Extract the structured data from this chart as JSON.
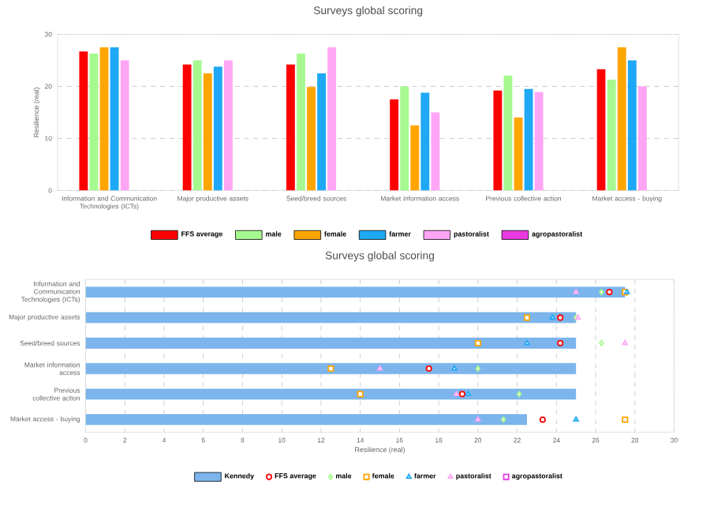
{
  "chart_data": [
    {
      "type": "bar",
      "title": "Surveys global scoring",
      "ylabel": "Resilience (real)",
      "categories": [
        "Information and Communication Technologies (ICTs)",
        "Major productive assets",
        "Seed/breed sources",
        "Market information access",
        "Previous collective action",
        "Market access - buying"
      ],
      "series": [
        {
          "name": "FFS average",
          "color": "#ff0000",
          "values": [
            26.7,
            24.2,
            24.2,
            17.5,
            19.2,
            23.3
          ]
        },
        {
          "name": "male",
          "color": "#a6f98f",
          "values": [
            26.3,
            25.0,
            26.3,
            20.0,
            22.1,
            21.3
          ]
        },
        {
          "name": "female",
          "color": "#ffa500",
          "values": [
            27.5,
            22.5,
            19.9,
            12.5,
            14.0,
            27.5
          ]
        },
        {
          "name": "farmer",
          "color": "#1fa8f5",
          "values": [
            27.5,
            23.8,
            22.5,
            18.8,
            19.5,
            25.0
          ]
        },
        {
          "name": "pastoralist",
          "color": "#ffa5f5",
          "values": [
            25.0,
            25.0,
            27.5,
            15.0,
            18.9,
            20.0
          ]
        },
        {
          "name": "agropastoralist",
          "color": "#e83ae0",
          "values": [
            null,
            null,
            null,
            null,
            null,
            null
          ]
        }
      ],
      "ylim": [
        0,
        30
      ],
      "yticks": [
        0,
        10,
        20,
        30
      ],
      "grid": "y",
      "legend": "bottom"
    },
    {
      "type": "bar",
      "orientation": "horizontal",
      "title": "Surveys global scoring",
      "xlabel": "Resilience (real)",
      "categories": [
        "Information and Communication Technologies (ICTs)",
        "Major productive assets",
        "Seed/breed sources",
        "Market information access",
        "Previous collective action",
        "Market access - buying"
      ],
      "series": [
        {
          "name": "Kennedy",
          "type": "bar",
          "color": "#7cb5ec",
          "values": [
            27.5,
            25.0,
            25.0,
            25.0,
            25.0,
            22.5
          ]
        },
        {
          "name": "FFS average",
          "type": "scatter",
          "marker": "circle",
          "color": "#ff0000",
          "values": [
            26.7,
            24.2,
            24.2,
            17.5,
            19.2,
            23.3
          ]
        },
        {
          "name": "male",
          "type": "scatter",
          "marker": "diamond",
          "color": "#a6f98f",
          "values": [
            26.3,
            25.0,
            26.3,
            20.0,
            22.1,
            21.3
          ]
        },
        {
          "name": "female",
          "type": "scatter",
          "marker": "square",
          "color": "#ffa500",
          "values": [
            27.5,
            22.5,
            20.0,
            12.5,
            14.0,
            27.5
          ]
        },
        {
          "name": "farmer",
          "type": "scatter",
          "marker": "triangle",
          "color": "#1fa8f5",
          "values": [
            27.6,
            23.8,
            22.5,
            18.8,
            19.5,
            25.0
          ]
        },
        {
          "name": "pastoralist",
          "type": "scatter",
          "marker": "triangle",
          "color": "#ffa5f5",
          "values": [
            25.0,
            25.1,
            27.5,
            15.0,
            18.9,
            20.0
          ]
        },
        {
          "name": "agropastoralist",
          "type": "scatter",
          "marker": "square",
          "color": "#e83ae0",
          "values": [
            null,
            null,
            null,
            null,
            null,
            null
          ]
        }
      ],
      "xlim": [
        0,
        30
      ],
      "xticks": [
        0,
        2,
        4,
        6,
        8,
        10,
        12,
        14,
        16,
        18,
        20,
        22,
        24,
        26,
        28,
        30
      ],
      "grid": "x",
      "legend": "bottom"
    }
  ]
}
